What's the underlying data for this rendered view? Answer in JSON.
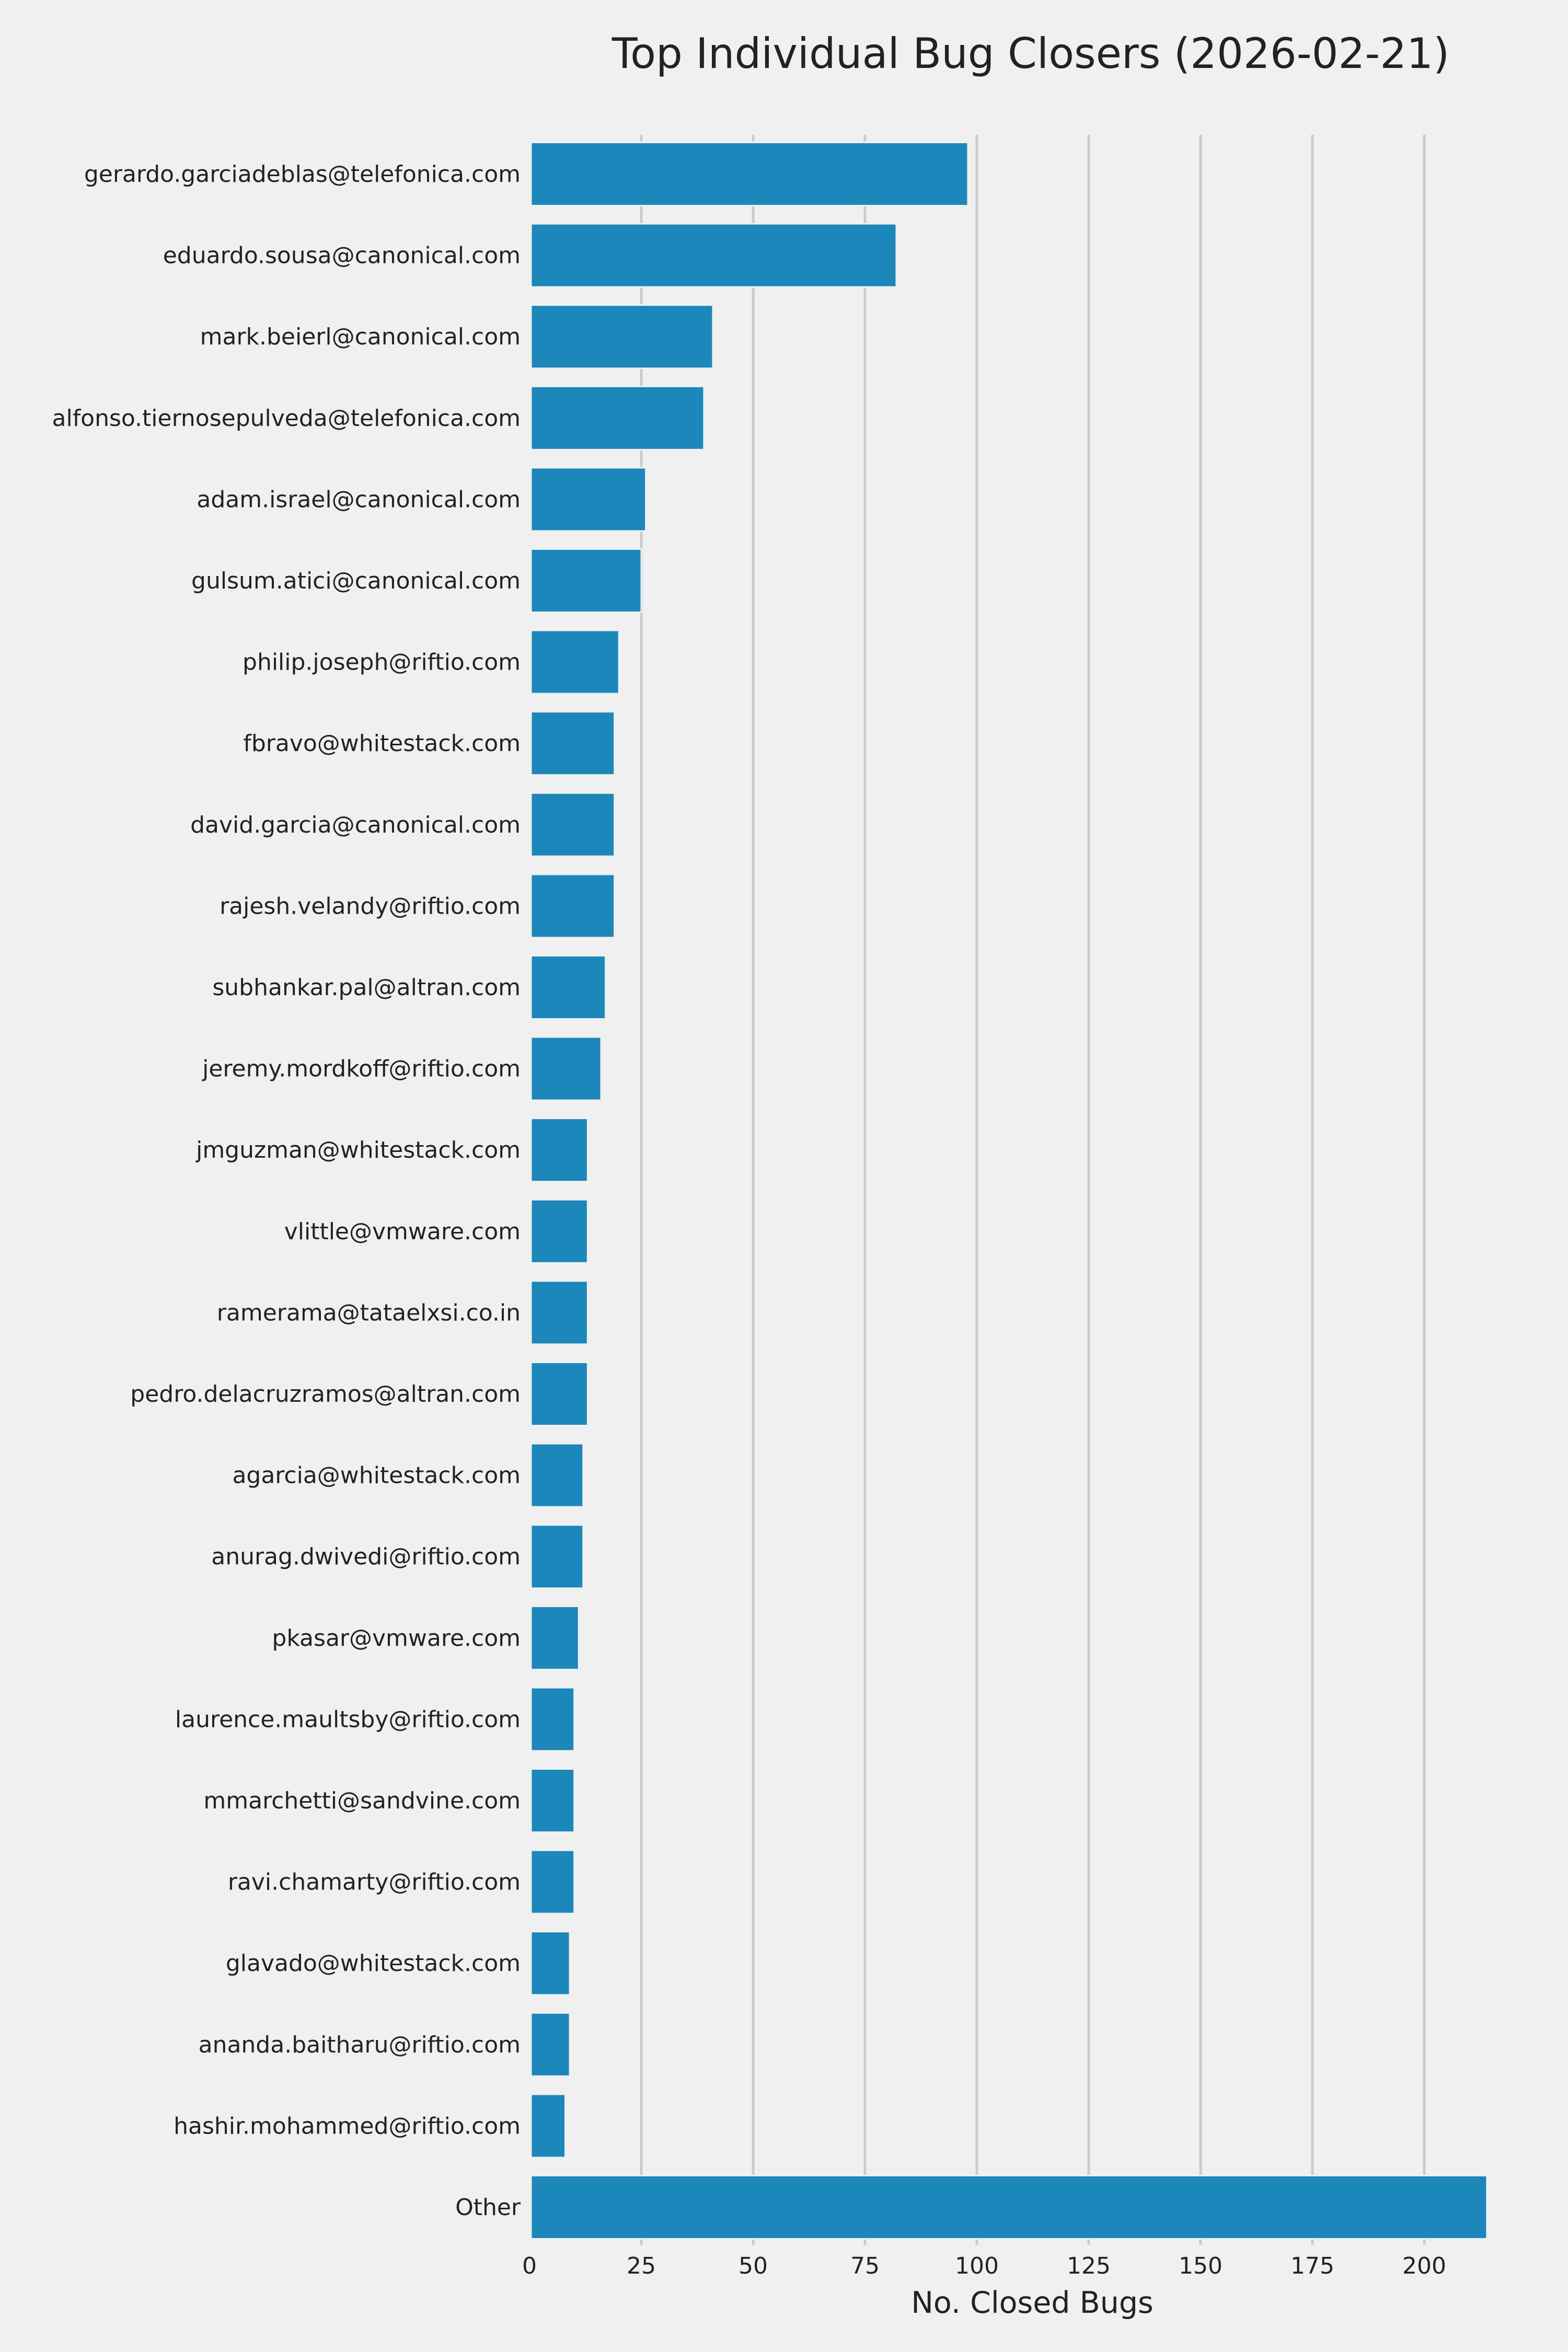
{
  "chart_data": {
    "type": "bar",
    "orientation": "horizontal",
    "title": "Top Individual Bug Closers (2026-02-21)",
    "xlabel": "No. Closed Bugs",
    "ylabel": "",
    "xlim": [
      0,
      214
    ],
    "xticks": [
      0,
      25,
      50,
      75,
      100,
      125,
      150,
      175,
      200
    ],
    "grid": "vertical",
    "legend": "none",
    "colors": {
      "bar": "#1c87ba",
      "background": "#f0f0f0",
      "grid": "#cbcbcb",
      "text": "#222222"
    },
    "categories": [
      "gerardo.garciadeblas@telefonica.com",
      "eduardo.sousa@canonical.com",
      "mark.beierl@canonical.com",
      "alfonso.tiernosepulveda@telefonica.com",
      "adam.israel@canonical.com",
      "gulsum.atici@canonical.com",
      "philip.joseph@riftio.com",
      "fbravo@whitestack.com",
      "david.garcia@canonical.com",
      "rajesh.velandy@riftio.com",
      "subhankar.pal@altran.com",
      "jeremy.mordkoff@riftio.com",
      "jmguzman@whitestack.com",
      "vlittle@vmware.com",
      "ramerama@tataelxsi.co.in",
      "pedro.delacruzramos@altran.com",
      "agarcia@whitestack.com",
      "anurag.dwivedi@riftio.com",
      "pkasar@vmware.com",
      "laurence.maultsby@riftio.com",
      "mmarchetti@sandvine.com",
      "ravi.chamarty@riftio.com",
      "glavado@whitestack.com",
      "ananda.baitharu@riftio.com",
      "hashir.mohammed@riftio.com",
      "Other"
    ],
    "values": [
      98,
      82,
      41,
      39,
      26,
      25,
      20,
      19,
      19,
      19,
      17,
      16,
      13,
      13,
      13,
      13,
      12,
      12,
      11,
      10,
      10,
      10,
      9,
      9,
      8,
      214
    ]
  }
}
